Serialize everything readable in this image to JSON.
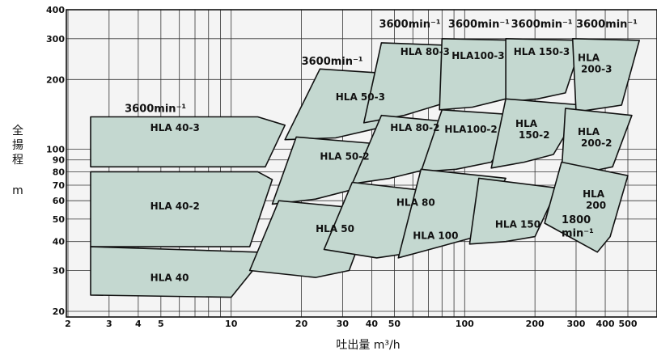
{
  "chart_data": {
    "type": "area",
    "x_scale": "log",
    "y_scale": "log",
    "xlim": [
      2,
      600
    ],
    "ylim": [
      20,
      400
    ],
    "grid": true,
    "xlabel": "吐出量 m³/h",
    "ylabel_text": "全揚程",
    "ylabel_unit": "m",
    "x_ticks": [
      {
        "v": 2,
        "t": "2"
      },
      {
        "v": 3,
        "t": "3"
      },
      {
        "v": 4,
        "t": "4"
      },
      {
        "v": 5,
        "t": "5"
      },
      {
        "v": 10,
        "t": "10"
      },
      {
        "v": 20,
        "t": "20"
      },
      {
        "v": 30,
        "t": "30"
      },
      {
        "v": 40,
        "t": "40"
      },
      {
        "v": 50,
        "t": "50"
      },
      {
        "v": 100,
        "t": "100"
      },
      {
        "v": 200,
        "t": "200"
      },
      {
        "v": 300,
        "t": "300"
      },
      {
        "v": 400,
        "t": "400"
      },
      {
        "v": 500,
        "t": "500"
      }
    ],
    "y_ticks": [
      {
        "v": 20,
        "t": "20"
      },
      {
        "v": 30,
        "t": "30"
      },
      {
        "v": 40,
        "t": "40"
      },
      {
        "v": 50,
        "t": "50"
      },
      {
        "v": 60,
        "t": "60"
      },
      {
        "v": 70,
        "t": "70"
      },
      {
        "v": 80,
        "t": "80"
      },
      {
        "v": 90,
        "t": "90"
      },
      {
        "v": 100,
        "t": "100"
      },
      {
        "v": 200,
        "t": "200"
      },
      {
        "v": 300,
        "t": "300"
      },
      {
        "v": 400,
        "t": "400"
      }
    ],
    "regions": [
      {
        "name": "HLA 40-3",
        "label_at": [
          4.5,
          120
        ],
        "points": [
          [
            2.5,
            138
          ],
          [
            13,
            138
          ],
          [
            17,
            127
          ],
          [
            14,
            84
          ],
          [
            2.5,
            84
          ]
        ]
      },
      {
        "name": "HLA 40-2",
        "label_at": [
          4.5,
          55
        ],
        "points": [
          [
            2.5,
            80
          ],
          [
            13,
            80
          ],
          [
            15,
            74
          ],
          [
            12,
            38
          ],
          [
            2.5,
            38
          ]
        ]
      },
      {
        "name": "HLA 40",
        "label_at": [
          4.5,
          27
        ],
        "points": [
          [
            2.5,
            38
          ],
          [
            13,
            36
          ],
          [
            14,
            35
          ],
          [
            10,
            23
          ],
          [
            2.5,
            23.5
          ]
        ]
      },
      {
        "name": "HLA 50-3",
        "label_at": [
          28,
          163
        ],
        "points": [
          [
            24,
            222
          ],
          [
            55,
            210
          ],
          [
            45,
            125
          ],
          [
            28,
            112
          ],
          [
            17,
            110
          ]
        ]
      },
      {
        "name": "HLA 50-2",
        "label_at": [
          24,
          90
        ],
        "points": [
          [
            19,
            113
          ],
          [
            45,
            105
          ],
          [
            35,
            68
          ],
          [
            23,
            61
          ],
          [
            15,
            58
          ]
        ]
      },
      {
        "name": "HLA 50",
        "label_at": [
          23,
          44
        ],
        "points": [
          [
            16,
            60
          ],
          [
            40,
            55
          ],
          [
            32,
            30
          ],
          [
            23,
            28
          ],
          [
            12,
            30
          ]
        ]
      },
      {
        "name": "HLA 80-3",
        "label_at": [
          53,
          255
        ],
        "points": [
          [
            44,
            288
          ],
          [
            92,
            280
          ],
          [
            85,
            160
          ],
          [
            55,
            140
          ],
          [
            37,
            130
          ]
        ]
      },
      {
        "name": "HLA 80-2",
        "label_at": [
          48,
          120
        ],
        "points": [
          [
            44,
            140
          ],
          [
            95,
            130
          ],
          [
            72,
            83
          ],
          [
            48,
            75
          ],
          [
            33,
            71
          ]
        ]
      },
      {
        "name": "HLA 80",
        "label_at": [
          51,
          57
        ],
        "points": [
          [
            33,
            72
          ],
          [
            80,
            65
          ],
          [
            62,
            36
          ],
          [
            42,
            34
          ],
          [
            25,
            37
          ]
        ]
      },
      {
        "name": "HLA100-3",
        "label_at": [
          88,
          245
        ],
        "points": [
          [
            80,
            300
          ],
          [
            170,
            295
          ],
          [
            150,
            165
          ],
          [
            108,
            152
          ],
          [
            78,
            148
          ]
        ]
      },
      {
        "name": "HLA100-2",
        "label_at": [
          82,
          118
        ],
        "points": [
          [
            80,
            148
          ],
          [
            180,
            140
          ],
          [
            130,
            88
          ],
          [
            92,
            82
          ],
          [
            65,
            80
          ]
        ]
      },
      {
        "name": "HLA 100",
        "label_at": [
          60,
          41
        ],
        "points": [
          [
            65,
            82
          ],
          [
            150,
            75
          ],
          [
            112,
            42
          ],
          [
            78,
            38
          ],
          [
            52,
            34
          ]
        ]
      },
      {
        "name": "HLA 150-3",
        "label_at": [
          162,
          255
        ],
        "points": [
          [
            150,
            300
          ],
          [
            320,
            295
          ],
          [
            270,
            175
          ],
          [
            205,
            165
          ],
          [
            150,
            160
          ]
        ]
      },
      {
        "name": "HLA 150-2",
        "label_at": [
          165,
          125
        ],
        "points": [
          [
            150,
            165
          ],
          [
            320,
            155
          ],
          [
            240,
            95
          ],
          [
            180,
            88
          ],
          [
            130,
            83
          ]
        ]
      },
      {
        "name": "HLA 150",
        "label_at": [
          135,
          46
        ],
        "points": [
          [
            115,
            75
          ],
          [
            250,
            68
          ],
          [
            200,
            42
          ],
          [
            150,
            40
          ],
          [
            105,
            39
          ]
        ]
      },
      {
        "name": "HLA 200-3",
        "label_at": [
          305,
          240
        ],
        "points": [
          [
            290,
            300
          ],
          [
            560,
            295
          ],
          [
            470,
            155
          ],
          [
            380,
            150
          ],
          [
            300,
            145
          ]
        ]
      },
      {
        "name": "HLA 200-2",
        "label_at": [
          305,
          115
        ],
        "points": [
          [
            270,
            150
          ],
          [
            520,
            140
          ],
          [
            430,
            84
          ],
          [
            340,
            80
          ],
          [
            260,
            79
          ]
        ]
      },
      {
        "name": "HLA 200",
        "label_at": [
          320,
          62
        ],
        "points": [
          [
            260,
            88
          ],
          [
            500,
            77
          ],
          [
            420,
            42
          ],
          [
            370,
            36
          ],
          [
            220,
            48
          ]
        ]
      }
    ],
    "region_label_lines": {
      "HLA 150-2": [
        "HLA",
        "150-2"
      ],
      "HLA 200-3": [
        "HLA",
        "200-3"
      ],
      "HLA 200-2": [
        "HLA",
        "200-2"
      ],
      "HLA 200": [
        "HLA",
        "200"
      ]
    },
    "speed_labels": [
      {
        "text": "3600min⁻¹",
        "at": [
          3.5,
          145
        ]
      },
      {
        "text": "3600min⁻¹",
        "at": [
          20,
          232
        ]
      },
      {
        "text": "3600min⁻¹",
        "at": [
          43,
          335
        ]
      },
      {
        "text": "3600min⁻¹",
        "at": [
          85,
          335
        ]
      },
      {
        "text": "3600min⁻¹",
        "at": [
          158,
          335
        ]
      },
      {
        "text": "3600min⁻¹",
        "at": [
          300,
          335
        ]
      },
      {
        "text": "1800",
        "at": [
          260,
          48
        ]
      },
      {
        "text": "min⁻¹",
        "at": [
          260,
          42
        ]
      }
    ]
  }
}
